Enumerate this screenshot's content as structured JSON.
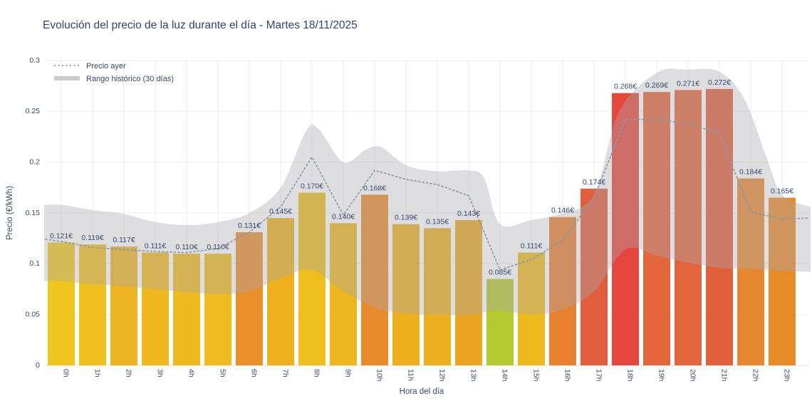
{
  "title": "Evolución del precio de la luz durante el día - Martes 18/11/2025",
  "colors": {
    "background": "#FFFFFF",
    "title_text": "#2F4572",
    "axis_text": "#3A4A6B",
    "grid": "#EBECF2",
    "band_fill_rgba": "rgba(167,167,175,0.38)",
    "band_legend_swatch": "#CBCBCF",
    "dashed_line": "#8A99A9"
  },
  "chart_data": {
    "type": "bar",
    "title": "Evolución del precio de la luz durante el día - Martes 18/11/2025",
    "xlabel": "Hora del día",
    "ylabel": "Precio (€/kWh)",
    "ylim": [
      0,
      0.3
    ],
    "grid": true,
    "legend_position": "top-left",
    "yticks": {
      "values": [
        0,
        0.05,
        0.1,
        0.15,
        0.2,
        0.25,
        0.3
      ],
      "labels": [
        "0",
        "0.05",
        "0.1",
        "0.15",
        "0.2",
        "0.25",
        "0.3"
      ]
    },
    "categories": [
      "0h",
      "1h",
      "2h",
      "3h",
      "4h",
      "5h",
      "6h",
      "7h",
      "8h",
      "9h",
      "10h",
      "11h",
      "12h",
      "13h",
      "14h",
      "15h",
      "16h",
      "17h",
      "18h",
      "19h",
      "20h",
      "21h",
      "22h",
      "23h"
    ],
    "values": [
      0.121,
      0.119,
      0.117,
      0.111,
      0.11,
      0.11,
      0.131,
      0.145,
      0.17,
      0.14,
      0.168,
      0.139,
      0.135,
      0.143,
      0.085,
      0.111,
      0.146,
      0.174,
      0.268,
      0.269,
      0.271,
      0.272,
      0.184,
      0.165
    ],
    "bar_labels": [
      "0.121€",
      "0.119€",
      "0.117€",
      "0.111€",
      "0.110€",
      "0.110€",
      "0.131€",
      "0.145€",
      "0.170€",
      "0.140€",
      "0.168€",
      "0.139€",
      "0.135€",
      "0.143€",
      "0.085€",
      "0.111€",
      "0.146€",
      "0.174€",
      "0.268€",
      "0.269€",
      "0.271€",
      "0.272€",
      "0.184€",
      "0.165€"
    ],
    "bar_colors": [
      "#EFC71E",
      "#EFBF1E",
      "#EEB321",
      "#EFB81E",
      "#EFBA1E",
      "#F0BC1D",
      "#EA8F2A",
      "#EEB01E",
      "#EEBE1C",
      "#EEB51E",
      "#E98B2C",
      "#EEAF1F",
      "#EEAF1F",
      "#EAA622",
      "#B5C931",
      "#EFBA1E",
      "#E8802F",
      "#E25D3C",
      "#E6473C",
      "#E3653B",
      "#E3653B",
      "#E25F3C",
      "#E78831",
      "#E98A29"
    ],
    "yesterday_line": {
      "label": "Precio ayer",
      "values": [
        0.122,
        0.116,
        0.114,
        0.112,
        0.111,
        0.115,
        0.131,
        0.156,
        0.205,
        0.148,
        0.192,
        0.183,
        0.178,
        0.167,
        0.094,
        0.104,
        0.123,
        0.165,
        0.242,
        0.242,
        0.238,
        0.228,
        0.151,
        0.144
      ]
    },
    "historical_range": {
      "label": "Rango histórico (30 días)",
      "upper": [
        [
          -0.5,
          0.158
        ],
        [
          0,
          0.158
        ],
        [
          1,
          0.153
        ],
        [
          2,
          0.149
        ],
        [
          3,
          0.141
        ],
        [
          4,
          0.138
        ],
        [
          5,
          0.141
        ],
        [
          6,
          0.15
        ],
        [
          7,
          0.175
        ],
        [
          7.8,
          0.23
        ],
        [
          8.2,
          0.233
        ],
        [
          9,
          0.2
        ],
        [
          9.7,
          0.212
        ],
        [
          10.2,
          0.215
        ],
        [
          11,
          0.197
        ],
        [
          12,
          0.191
        ],
        [
          13,
          0.192
        ],
        [
          13.5,
          0.184
        ],
        [
          14,
          0.139
        ],
        [
          15,
          0.143
        ],
        [
          16,
          0.15
        ],
        [
          17,
          0.168
        ],
        [
          17.8,
          0.25
        ],
        [
          19,
          0.288
        ],
        [
          20,
          0.291
        ],
        [
          21,
          0.289
        ],
        [
          21.8,
          0.262
        ],
        [
          22.5,
          0.205
        ],
        [
          23,
          0.168
        ],
        [
          23.6,
          0.156
        ]
      ],
      "lower": [
        [
          -0.5,
          0.083
        ],
        [
          0,
          0.083
        ],
        [
          1,
          0.08
        ],
        [
          2,
          0.078
        ],
        [
          3,
          0.075
        ],
        [
          4,
          0.072
        ],
        [
          5,
          0.07
        ],
        [
          6,
          0.073
        ],
        [
          7,
          0.086
        ],
        [
          8,
          0.094
        ],
        [
          9,
          0.073
        ],
        [
          10,
          0.057
        ],
        [
          11,
          0.051
        ],
        [
          12,
          0.05
        ],
        [
          13,
          0.05
        ],
        [
          14,
          0.054
        ],
        [
          15,
          0.05
        ],
        [
          16,
          0.055
        ],
        [
          17,
          0.073
        ],
        [
          18,
          0.114
        ],
        [
          19,
          0.108
        ],
        [
          20,
          0.101
        ],
        [
          21,
          0.096
        ],
        [
          22,
          0.095
        ],
        [
          23,
          0.093
        ],
        [
          23.6,
          0.092
        ]
      ]
    }
  }
}
